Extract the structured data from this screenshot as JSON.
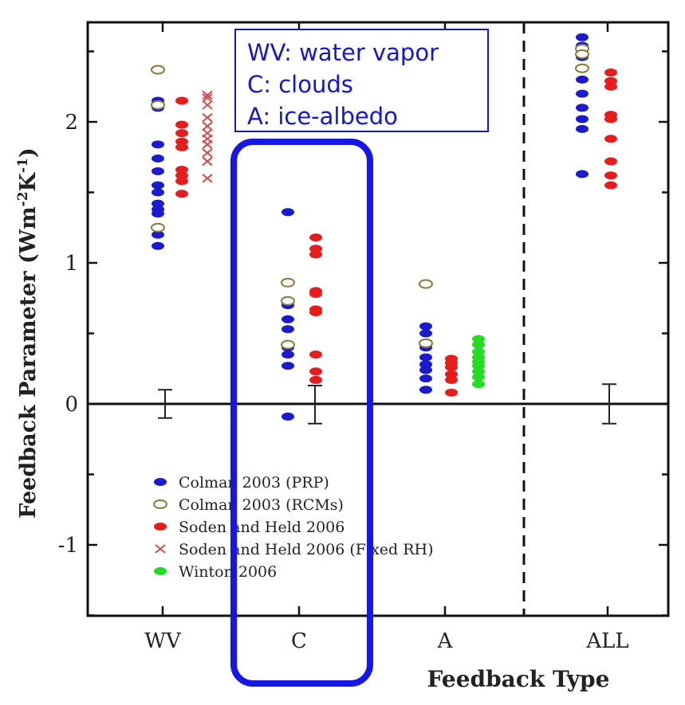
{
  "chart_data": {
    "type": "scatter",
    "title": "",
    "xlabel": "Feedback Type",
    "ylabel": "Feedback Parameter (Wm-2K-1)",
    "ylabel_parts": {
      "base": "Feedback Parameter (Wm",
      "exp1": "-2",
      "mid": "K",
      "exp2": "-1",
      "end": ")"
    },
    "ylim": [
      -1.5,
      2.7
    ],
    "yticks": [
      -1,
      0,
      1,
      2
    ],
    "ytick_labels": [
      "-1",
      "0",
      "1",
      "2"
    ],
    "categories": [
      "WV",
      "C",
      "A",
      "ALL"
    ],
    "grid": false,
    "divider_between": [
      "A",
      "ALL"
    ],
    "legend_position": "lower-left",
    "annotation_box": {
      "lines": [
        "WV: water vapor",
        "C: clouds",
        "A: ice-albedo"
      ],
      "color": "#1515d4"
    },
    "highlight": {
      "category": "C",
      "color": "#1515ee"
    },
    "series": [
      {
        "name": "Colman 2003 (PRP)",
        "marker": "filled-ellipse",
        "color": "#1a1ad0",
        "points": [
          {
            "cat": "WV",
            "y": 2.15
          },
          {
            "cat": "WV",
            "y": 2.1
          },
          {
            "cat": "WV",
            "y": 1.84
          },
          {
            "cat": "WV",
            "y": 1.74
          },
          {
            "cat": "WV",
            "y": 1.65
          },
          {
            "cat": "WV",
            "y": 1.55
          },
          {
            "cat": "WV",
            "y": 1.5
          },
          {
            "cat": "WV",
            "y": 1.42
          },
          {
            "cat": "WV",
            "y": 1.38
          },
          {
            "cat": "WV",
            "y": 1.35
          },
          {
            "cat": "WV",
            "y": 1.2
          },
          {
            "cat": "WV",
            "y": 1.12
          },
          {
            "cat": "C",
            "y": 1.36
          },
          {
            "cat": "C",
            "y": 0.7
          },
          {
            "cat": "C",
            "y": 0.6
          },
          {
            "cat": "C",
            "y": 0.53
          },
          {
            "cat": "C",
            "y": 0.4
          },
          {
            "cat": "C",
            "y": 0.35
          },
          {
            "cat": "C",
            "y": 0.27
          },
          {
            "cat": "C",
            "y": -0.09
          },
          {
            "cat": "A",
            "y": 0.55
          },
          {
            "cat": "A",
            "y": 0.5
          },
          {
            "cat": "A",
            "y": 0.4
          },
          {
            "cat": "A",
            "y": 0.33
          },
          {
            "cat": "A",
            "y": 0.28
          },
          {
            "cat": "A",
            "y": 0.24
          },
          {
            "cat": "A",
            "y": 0.18
          },
          {
            "cat": "A",
            "y": 0.1
          },
          {
            "cat": "ALL",
            "y": 2.6
          },
          {
            "cat": "ALL",
            "y": 2.54
          },
          {
            "cat": "ALL",
            "y": 2.46
          },
          {
            "cat": "ALL",
            "y": 2.3
          },
          {
            "cat": "ALL",
            "y": 2.2
          },
          {
            "cat": "ALL",
            "y": 2.1
          },
          {
            "cat": "ALL",
            "y": 2.02
          },
          {
            "cat": "ALL",
            "y": 1.95
          },
          {
            "cat": "ALL",
            "y": 1.63
          }
        ]
      },
      {
        "name": "Colman 2003 (RCMs)",
        "marker": "open-ellipse",
        "color": "#8a7a3a",
        "points": [
          {
            "cat": "WV",
            "y": 2.37
          },
          {
            "cat": "WV",
            "y": 2.12
          },
          {
            "cat": "WV",
            "y": 1.25
          },
          {
            "cat": "C",
            "y": 0.86
          },
          {
            "cat": "C",
            "y": 0.73
          },
          {
            "cat": "C",
            "y": 0.42
          },
          {
            "cat": "A",
            "y": 0.85
          },
          {
            "cat": "A",
            "y": 0.43
          },
          {
            "cat": "ALL",
            "y": 2.52
          },
          {
            "cat": "ALL",
            "y": 2.48
          },
          {
            "cat": "ALL",
            "y": 2.38
          }
        ]
      },
      {
        "name": "Soden and Held 2006",
        "marker": "filled-ellipse",
        "color": "#e81c1c",
        "points": [
          {
            "cat": "WV",
            "y": 2.15
          },
          {
            "cat": "WV",
            "y": 1.98
          },
          {
            "cat": "WV",
            "y": 1.92
          },
          {
            "cat": "WV",
            "y": 1.86
          },
          {
            "cat": "WV",
            "y": 1.82
          },
          {
            "cat": "WV",
            "y": 1.66
          },
          {
            "cat": "WV",
            "y": 1.62
          },
          {
            "cat": "WV",
            "y": 1.58
          },
          {
            "cat": "WV",
            "y": 1.49
          },
          {
            "cat": "C",
            "y": 1.18
          },
          {
            "cat": "C",
            "y": 1.1
          },
          {
            "cat": "C",
            "y": 1.06
          },
          {
            "cat": "C",
            "y": 0.8
          },
          {
            "cat": "C",
            "y": 0.78
          },
          {
            "cat": "C",
            "y": 0.67
          },
          {
            "cat": "C",
            "y": 0.65
          },
          {
            "cat": "C",
            "y": 0.35
          },
          {
            "cat": "C",
            "y": 0.23
          },
          {
            "cat": "C",
            "y": 0.17
          },
          {
            "cat": "A",
            "y": 0.32
          },
          {
            "cat": "A",
            "y": 0.29
          },
          {
            "cat": "A",
            "y": 0.26
          },
          {
            "cat": "A",
            "y": 0.21
          },
          {
            "cat": "A",
            "y": 0.17
          },
          {
            "cat": "A",
            "y": 0.08
          },
          {
            "cat": "ALL",
            "y": 2.35
          },
          {
            "cat": "ALL",
            "y": 2.29
          },
          {
            "cat": "ALL",
            "y": 2.25
          },
          {
            "cat": "ALL",
            "y": 2.05
          },
          {
            "cat": "ALL",
            "y": 2.02
          },
          {
            "cat": "ALL",
            "y": 1.88
          },
          {
            "cat": "ALL",
            "y": 1.72
          },
          {
            "cat": "ALL",
            "y": 1.62
          },
          {
            "cat": "ALL",
            "y": 1.55
          }
        ]
      },
      {
        "name": "Soden and Held 2006 (Fixed RH)",
        "marker": "x",
        "color": "#d84a4a",
        "points": [
          {
            "cat": "WV",
            "y": 2.19
          },
          {
            "cat": "WV",
            "y": 2.17
          },
          {
            "cat": "WV",
            "y": 2.12
          },
          {
            "cat": "WV",
            "y": 2.03
          },
          {
            "cat": "WV",
            "y": 1.97
          },
          {
            "cat": "WV",
            "y": 1.92
          },
          {
            "cat": "WV",
            "y": 1.88
          },
          {
            "cat": "WV",
            "y": 1.84
          },
          {
            "cat": "WV",
            "y": 1.78
          },
          {
            "cat": "WV",
            "y": 1.72
          },
          {
            "cat": "WV",
            "y": 1.6
          }
        ]
      },
      {
        "name": "Winton 2006",
        "marker": "filled-ellipse",
        "color": "#22dd22",
        "points": [
          {
            "cat": "A",
            "y": 0.46
          },
          {
            "cat": "A",
            "y": 0.42
          },
          {
            "cat": "A",
            "y": 0.37
          },
          {
            "cat": "A",
            "y": 0.33
          },
          {
            "cat": "A",
            "y": 0.3
          },
          {
            "cat": "A",
            "y": 0.27
          },
          {
            "cat": "A",
            "y": 0.23
          },
          {
            "cat": "A",
            "y": 0.19
          },
          {
            "cat": "A",
            "y": 0.14
          }
        ]
      }
    ],
    "error_bars": [
      {
        "cat": "WV",
        "center": 0.0,
        "low": -0.1,
        "high": 0.1
      },
      {
        "cat": "C",
        "center": 0.0,
        "low": -0.14,
        "high": 0.13
      },
      {
        "cat": "ALL",
        "center": 0.0,
        "low": -0.14,
        "high": 0.14
      }
    ]
  }
}
